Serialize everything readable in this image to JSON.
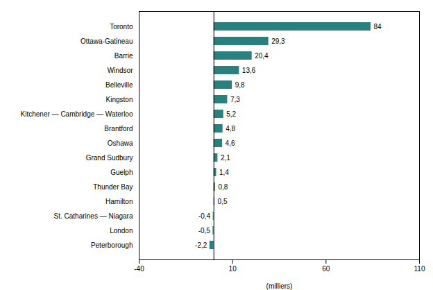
{
  "chart_data": {
    "type": "bar",
    "orientation": "horizontal",
    "categories": [
      "Peterborough",
      "London",
      "St. Catharines — Niagara",
      "Hamilton",
      "Thunder Bay",
      "Guelph",
      "Grand Sudbury",
      "Oshawa",
      "Brantford",
      "Kitchener — Cambridge — Waterloo",
      "Kingston",
      "Belleville",
      "Windsor",
      "Barrie",
      "Ottawa-Gatineau",
      "Toronto"
    ],
    "values": [
      -2.2,
      -0.5,
      -0.4,
      0.5,
      0.8,
      1.4,
      2.1,
      4.6,
      4.8,
      5.2,
      7.3,
      9.8,
      13.6,
      20.4,
      29.3,
      84.0
    ],
    "value_labels": [
      "-2,2",
      "-0,5",
      "-0,4",
      "0,5",
      "0,8",
      "1,4",
      "2,1",
      "4,6",
      "4,8",
      "5,2",
      "7,3",
      "9,8",
      "13,6",
      "20,4",
      "29,3",
      "84"
    ],
    "data_labels": true,
    "color": "#2a7f7f",
    "xlabel": "(milliers)",
    "xlim": [
      -40,
      110
    ],
    "xticks": [
      -40,
      10,
      60,
      110
    ],
    "grid": false
  }
}
